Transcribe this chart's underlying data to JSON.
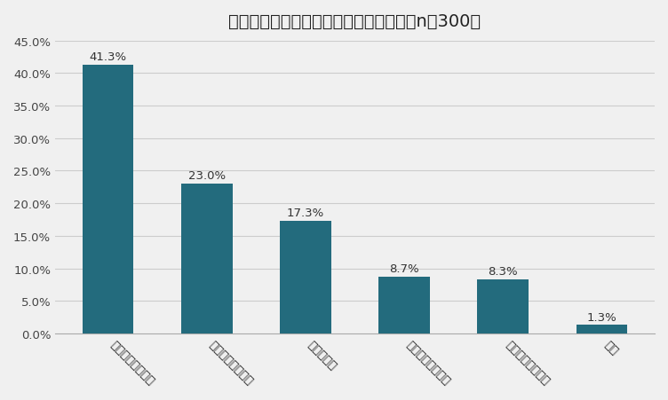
{
  "title": "自宅のトイレの種類はどれですか？　（n＝300）",
  "categories": [
    "手洗い付き分離型",
    "手洗い付き一体型",
    "タンクレス",
    "手洗いなし一体型",
    "手洗いなし分離型",
    "和式"
  ],
  "values": [
    0.413,
    0.23,
    0.173,
    0.087,
    0.083,
    0.013
  ],
  "labels": [
    "41.3%",
    "23.0%",
    "17.3%",
    "8.7%",
    "8.3%",
    "1.3%"
  ],
  "bar_color": "#236b7d",
  "background_color": "#f0f0f0",
  "ylim": [
    0,
    0.45
  ],
  "yticks": [
    0.0,
    0.05,
    0.1,
    0.15,
    0.2,
    0.25,
    0.3,
    0.35,
    0.4,
    0.45
  ],
  "ytick_labels": [
    "0.0%",
    "5.0%",
    "10.0%",
    "15.0%",
    "20.0%",
    "25.0%",
    "30.0%",
    "35.0%",
    "40.0%",
    "45.0%"
  ],
  "title_fontsize": 14,
  "label_fontsize": 9.5,
  "tick_fontsize": 9.5,
  "xlabel_rotation": -45
}
